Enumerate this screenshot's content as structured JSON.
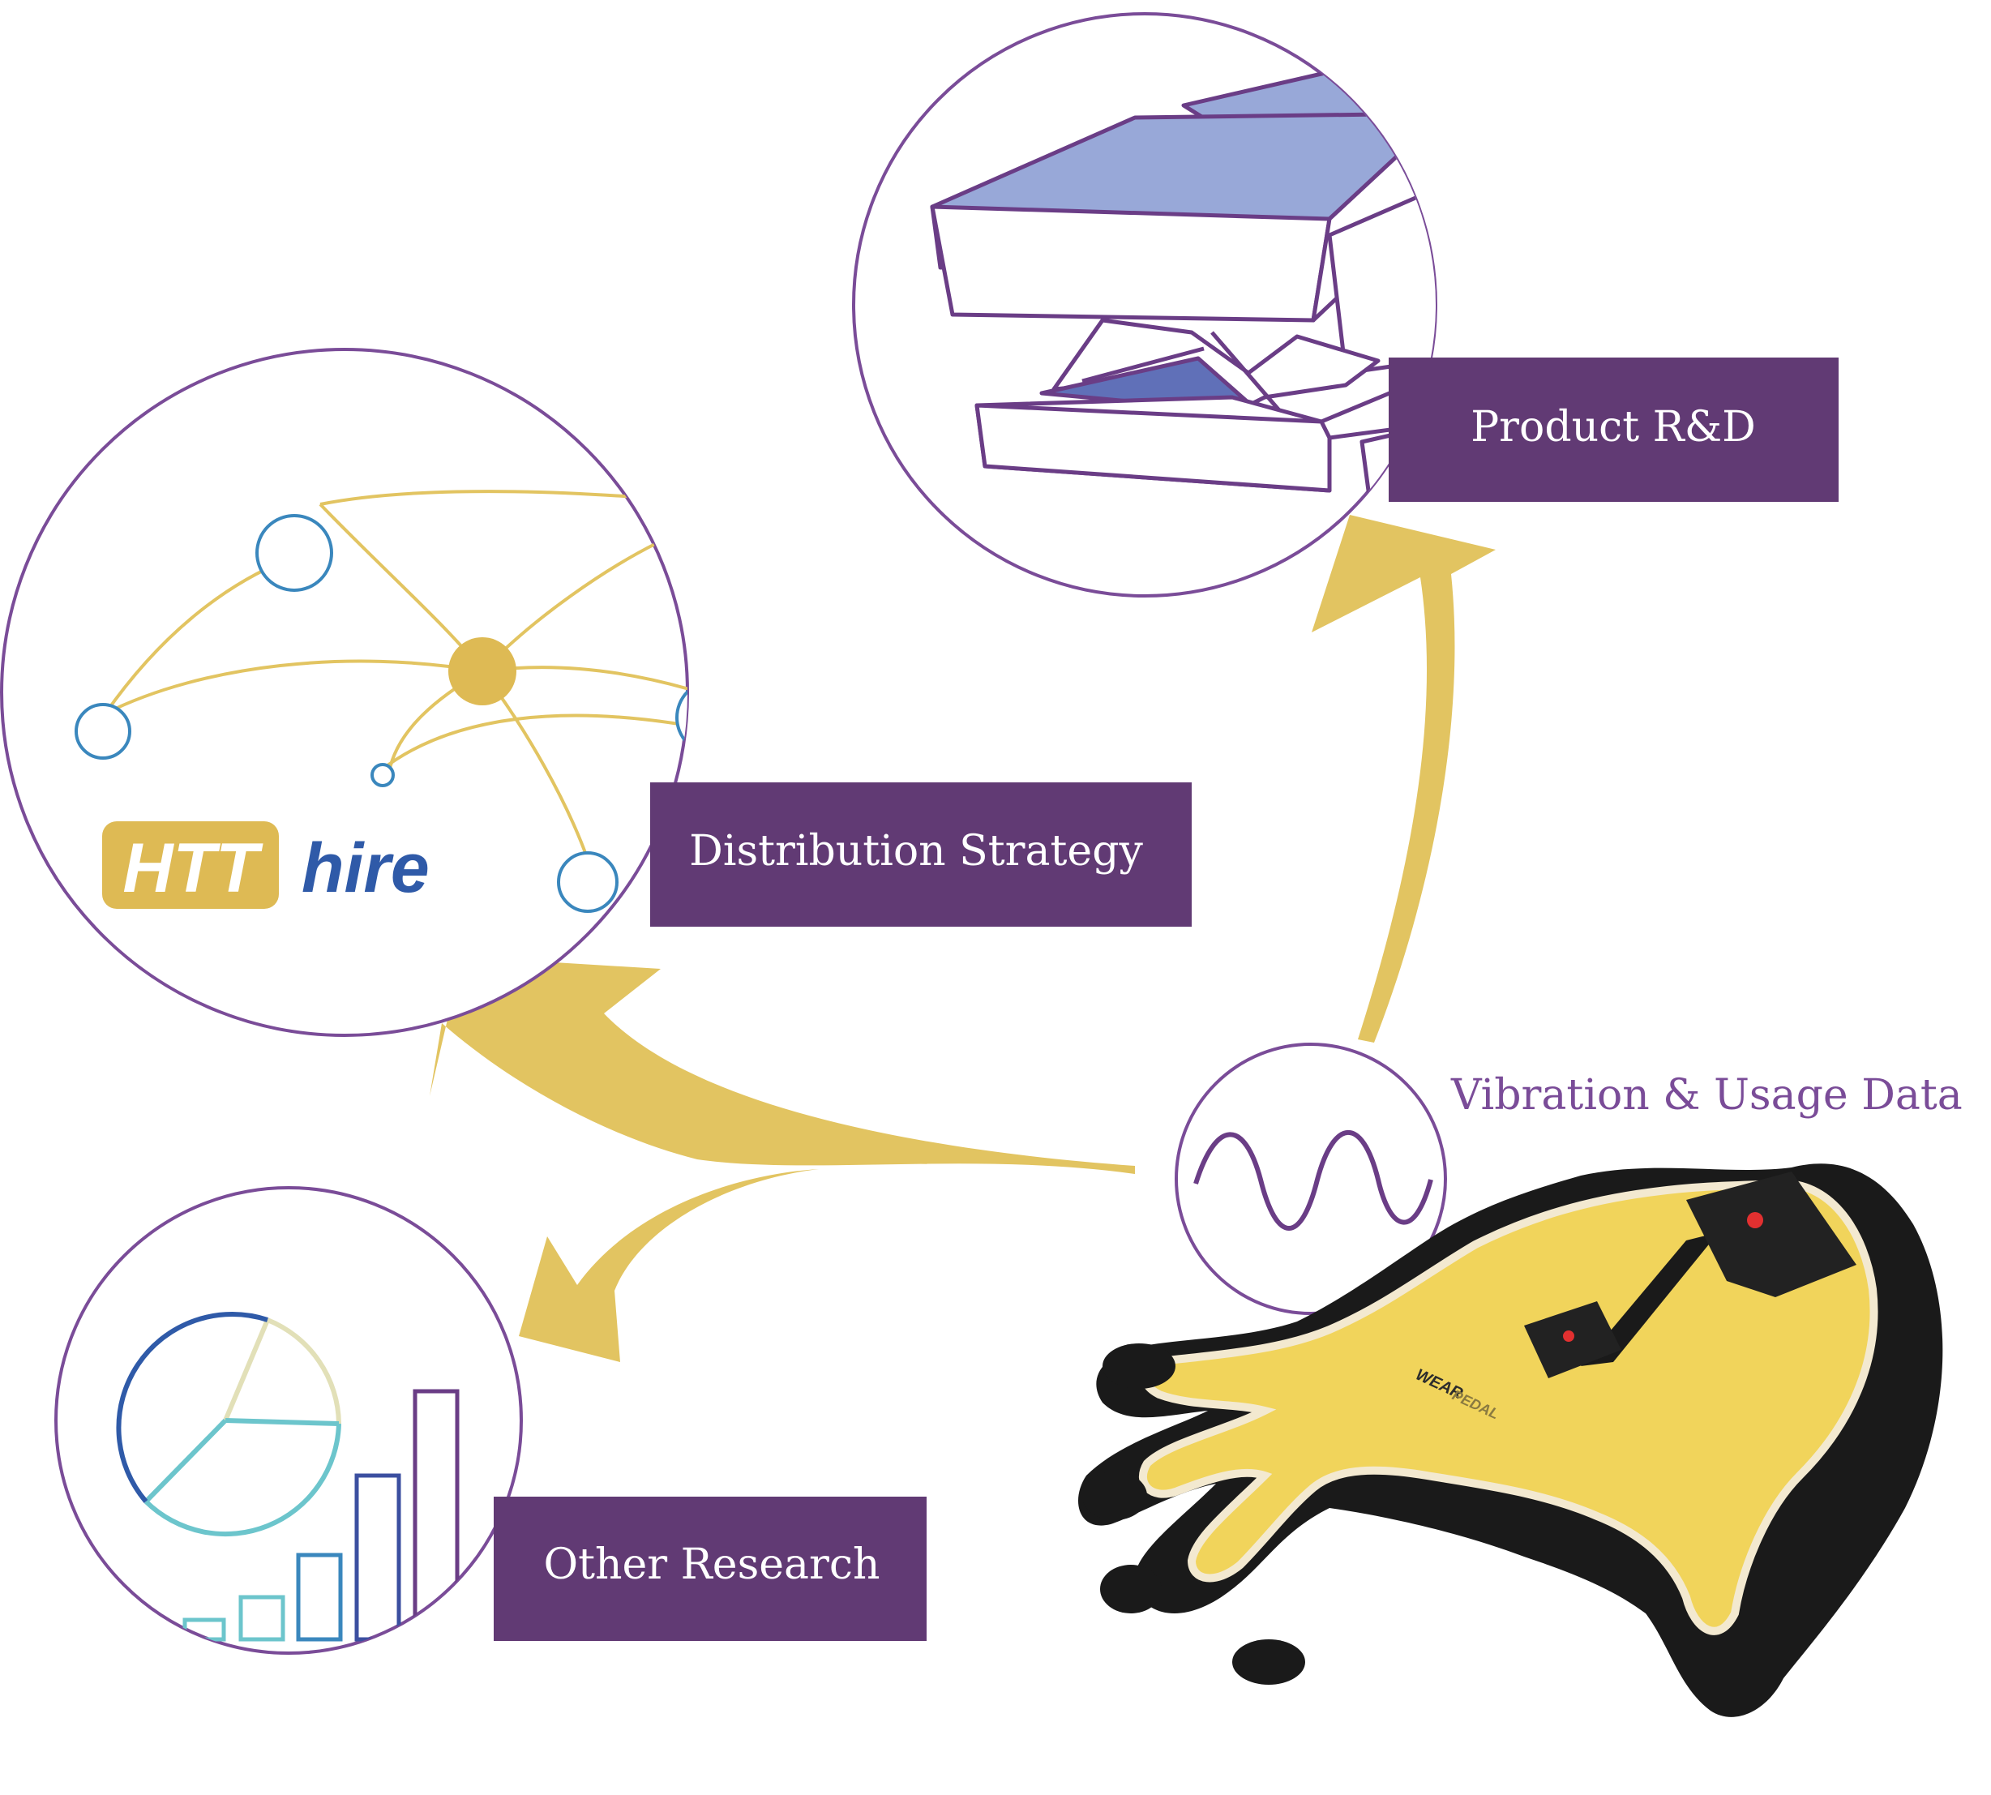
{
  "labels": {
    "product": "Product R&D",
    "distribution": "Distribution Strategy",
    "research": "Other Research",
    "data_source": "Vibration & Usage Data"
  },
  "logo": {
    "part1": "HTT",
    "part2": "hire"
  },
  "glove": {
    "brand_mark": "WEAR",
    "print": "PEDAL"
  },
  "colors": {
    "purple": "#613a74",
    "circle_outline": "#7a4c98",
    "arrow_gold": "#e2c461",
    "logo_gold": "#deba54",
    "logo_blue": "#2f5aa8",
    "node_blue": "#3a87bd",
    "chip_blue": "#98a8d8"
  }
}
